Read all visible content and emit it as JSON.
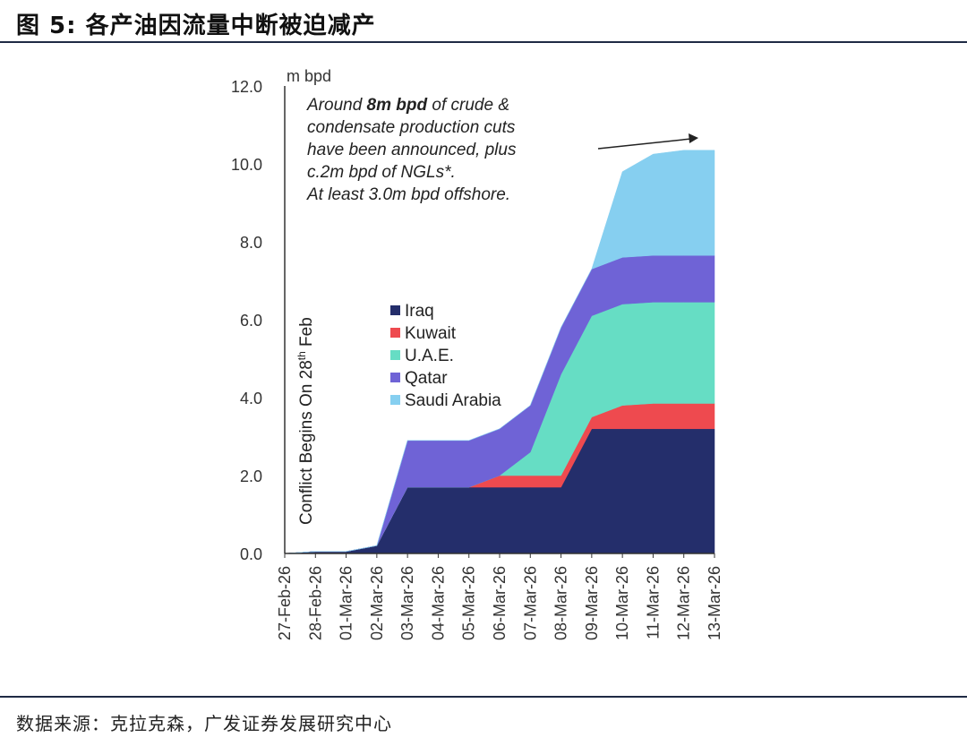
{
  "header": {
    "title": "图 5: 各产油因流量中断被迫减产"
  },
  "footer": {
    "source": "数据来源：克拉克森，广发证券发展研究中心"
  },
  "chart_data": {
    "type": "area",
    "stacked": true,
    "unit_label": "m bpd",
    "categories": [
      "27-Feb-26",
      "28-Feb-26",
      "01-Mar-26",
      "02-Mar-26",
      "03-Mar-26",
      "04-Mar-26",
      "05-Mar-26",
      "06-Mar-26",
      "07-Mar-26",
      "08-Mar-26",
      "09-Mar-26",
      "10-Mar-26",
      "11-Mar-26",
      "12-Mar-26",
      "13-Mar-26"
    ],
    "ylim": [
      0,
      12
    ],
    "yticks": [
      "0.0",
      "2.0",
      "4.0",
      "6.0",
      "8.0",
      "10.0",
      "12.0"
    ],
    "series": [
      {
        "name": "Iraq",
        "color": "#242e6b",
        "values": [
          0.0,
          0.05,
          0.05,
          0.2,
          1.7,
          1.7,
          1.7,
          1.7,
          1.7,
          1.7,
          3.2,
          3.2,
          3.2,
          3.2,
          3.2
        ]
      },
      {
        "name": "Kuwait",
        "color": "#ee4a4f",
        "values": [
          0,
          0,
          0,
          0,
          0,
          0,
          0,
          0.3,
          0.3,
          0.3,
          0.3,
          0.6,
          0.65,
          0.65,
          0.65
        ]
      },
      {
        "name": "U.A.E.",
        "color": "#66ddc4",
        "values": [
          0,
          0,
          0,
          0,
          0,
          0,
          0,
          0,
          0.6,
          2.6,
          2.6,
          2.6,
          2.6,
          2.6,
          2.6
        ]
      },
      {
        "name": "Qatar",
        "color": "#6f63d6",
        "values": [
          0,
          0,
          0,
          0,
          1.2,
          1.2,
          1.2,
          1.2,
          1.2,
          1.2,
          1.2,
          1.2,
          1.2,
          1.2,
          1.2
        ]
      },
      {
        "name": "Saudi Arabia",
        "color": "#86cff0",
        "values": [
          0,
          0,
          0,
          0,
          0,
          0,
          0,
          0,
          0,
          0,
          0,
          2.2,
          2.6,
          2.7,
          2.7
        ]
      }
    ],
    "annotation": {
      "lines": [
        [
          "Around ",
          "8m bpd",
          " of crude &"
        ],
        [
          "condensate production cuts"
        ],
        [
          "have been announced, plus"
        ],
        [
          "c.2m bpd of NGLs*."
        ],
        [
          "At least 3.0m bpd offshore."
        ]
      ]
    },
    "vertical_label": {
      "prefix": "Conflict Begins On 28",
      "superscript": "th",
      "suffix": " Feb"
    }
  }
}
